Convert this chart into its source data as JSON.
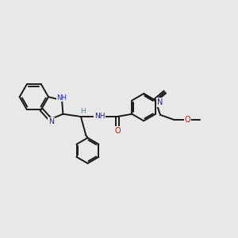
{
  "bg_color": "#e8e8e8",
  "bond_color": "#1a1a1a",
  "N_color": "#1a1acc",
  "O_color": "#cc1a00",
  "H_color": "#2299aa",
  "fig_width": 3.0,
  "fig_height": 3.0,
  "dpi": 100,
  "lw": 1.4,
  "xlim": [
    0,
    14
  ],
  "ylim": [
    0,
    10
  ]
}
